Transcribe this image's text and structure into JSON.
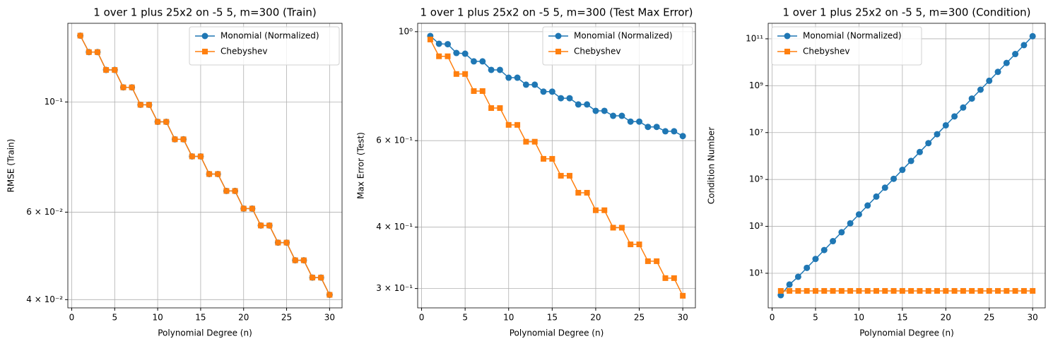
{
  "chart_data": [
    {
      "type": "line",
      "title": "1 over 1 plus 25x2 on -5 5, m=300 (Train)",
      "xlabel": "Polynomial Degree (n)",
      "ylabel": "RMSE (Train)",
      "x": [
        1,
        2,
        3,
        4,
        5,
        6,
        7,
        8,
        9,
        10,
        11,
        12,
        13,
        14,
        15,
        16,
        17,
        18,
        19,
        20,
        21,
        22,
        23,
        24,
        25,
        26,
        27,
        28,
        29,
        30
      ],
      "series": [
        {
          "name": "Monomial (Normalized)",
          "color": "#1f77b4",
          "marker": "circle",
          "values": [
            0.136,
            0.126,
            0.126,
            0.116,
            0.116,
            0.107,
            0.107,
            0.0987,
            0.0987,
            0.0912,
            0.0912,
            0.0841,
            0.0841,
            0.0777,
            0.0777,
            0.0716,
            0.0716,
            0.0662,
            0.0662,
            0.061,
            0.061,
            0.0564,
            0.0564,
            0.0521,
            0.0521,
            0.048,
            0.048,
            0.0443,
            0.0443,
            0.0409
          ]
        },
        {
          "name": "Chebyshev",
          "color": "#ff7f0e",
          "marker": "square",
          "values": [
            0.136,
            0.126,
            0.126,
            0.116,
            0.116,
            0.107,
            0.107,
            0.0987,
            0.0987,
            0.0912,
            0.0912,
            0.0841,
            0.0841,
            0.0777,
            0.0777,
            0.0716,
            0.0716,
            0.0662,
            0.0662,
            0.061,
            0.061,
            0.0564,
            0.0564,
            0.0521,
            0.0521,
            0.048,
            0.048,
            0.0443,
            0.0443,
            0.0409
          ]
        }
      ],
      "xlim": [
        -0.45,
        31.45
      ],
      "xticks": [
        0,
        5,
        10,
        15,
        20,
        25,
        30
      ],
      "ylim": [
        0.0385,
        0.144
      ],
      "yticks": [
        {
          "value": 0.04,
          "label": "4 × 10⁻²"
        },
        {
          "value": 0.06,
          "label": "6 × 10⁻²"
        },
        {
          "value": 0.1,
          "label": "10⁻¹"
        }
      ],
      "log_y": true,
      "grid": true,
      "legend": "upper right"
    },
    {
      "type": "line",
      "title": "1 over 1 plus 25x2 on -5 5, m=300 (Test Max Error)",
      "xlabel": "Polynomial Degree (n)",
      "ylabel": "Max Error (Test)",
      "x": [
        1,
        2,
        3,
        4,
        5,
        6,
        7,
        8,
        9,
        10,
        11,
        12,
        13,
        14,
        15,
        16,
        17,
        18,
        19,
        20,
        21,
        22,
        23,
        24,
        25,
        26,
        27,
        28,
        29,
        30
      ],
      "series": [
        {
          "name": "Monomial (Normalized)",
          "color": "#1f77b4",
          "marker": "circle",
          "values": [
            0.98,
            0.945,
            0.943,
            0.905,
            0.902,
            0.87,
            0.87,
            0.836,
            0.836,
            0.806,
            0.806,
            0.78,
            0.78,
            0.755,
            0.755,
            0.732,
            0.732,
            0.711,
            0.711,
            0.69,
            0.69,
            0.674,
            0.674,
            0.656,
            0.656,
            0.64,
            0.64,
            0.627,
            0.627,
            0.613
          ]
        },
        {
          "name": "Chebyshev",
          "color": "#ff7f0e",
          "marker": "square",
          "values": [
            0.964,
            0.891,
            0.891,
            0.82,
            0.82,
            0.757,
            0.757,
            0.699,
            0.699,
            0.646,
            0.646,
            0.597,
            0.597,
            0.551,
            0.551,
            0.509,
            0.509,
            0.47,
            0.47,
            0.433,
            0.433,
            0.399,
            0.399,
            0.369,
            0.369,
            0.341,
            0.341,
            0.315,
            0.315,
            0.29
          ]
        }
      ],
      "xlim": [
        -0.45,
        31.45
      ],
      "xticks": [
        0,
        5,
        10,
        15,
        20,
        25,
        30
      ],
      "ylim": [
        0.274,
        1.04
      ],
      "yticks": [
        {
          "value": 0.3,
          "label": "3 × 10⁻¹"
        },
        {
          "value": 0.4,
          "label": "4 × 10⁻¹"
        },
        {
          "value": 0.6,
          "label": "6 × 10⁻¹"
        },
        {
          "value": 1,
          "label": "10⁰"
        }
      ],
      "log_y": true,
      "grid": true,
      "legend": "upper right"
    },
    {
      "type": "line",
      "title": "1 over 1 plus 25x2 on -5 5, m=300 (Condition)",
      "xlabel": "Polynomial Degree (n)",
      "ylabel": "Condition Number",
      "x": [
        1,
        2,
        3,
        4,
        5,
        6,
        7,
        8,
        9,
        10,
        11,
        12,
        13,
        14,
        15,
        16,
        17,
        18,
        19,
        20,
        21,
        22,
        23,
        24,
        25,
        26,
        27,
        28,
        29,
        30
      ],
      "series": [
        {
          "name": "Monomial (Normalized)",
          "color": "#1f77b4",
          "marker": "circle",
          "values": [
            1.16,
            3.31,
            7.08,
            17,
            40.7,
            97.7,
            234,
            562,
            1350,
            3240,
            7760,
            18600,
            44700,
            107000,
            257000,
            617000,
            1480000,
            3550000,
            8510000,
            20400000,
            49000000,
            117000000,
            282000000,
            676000000,
            1620000000,
            3890000000,
            9330000000,
            22400000000,
            53700000000,
            129000000000
          ]
        },
        {
          "name": "Chebyshev",
          "color": "#ff7f0e",
          "marker": "square",
          "values": [
            1.77,
            1.77,
            1.77,
            1.77,
            1.77,
            1.77,
            1.77,
            1.77,
            1.77,
            1.77,
            1.77,
            1.77,
            1.77,
            1.77,
            1.77,
            1.77,
            1.77,
            1.77,
            1.77,
            1.77,
            1.77,
            1.77,
            1.77,
            1.77,
            1.77,
            1.77,
            1.77,
            1.77,
            1.77,
            1.77
          ]
        }
      ],
      "xlim": [
        -0.45,
        31.45
      ],
      "xticks": [
        0,
        5,
        10,
        15,
        20,
        25,
        30
      ],
      "ylim": [
        0.334,
        458000000000
      ],
      "yticks": [
        {
          "value": 10,
          "label": "10¹"
        },
        {
          "value": 1000,
          "label": "10³"
        },
        {
          "value": 100000,
          "label": "10⁵"
        },
        {
          "value": 10000000,
          "label": "10⁷"
        },
        {
          "value": 1000000000,
          "label": "10⁹"
        },
        {
          "value": 100000000000,
          "label": "10¹¹"
        }
      ],
      "log_y": true,
      "grid": true,
      "legend": "upper left"
    }
  ]
}
